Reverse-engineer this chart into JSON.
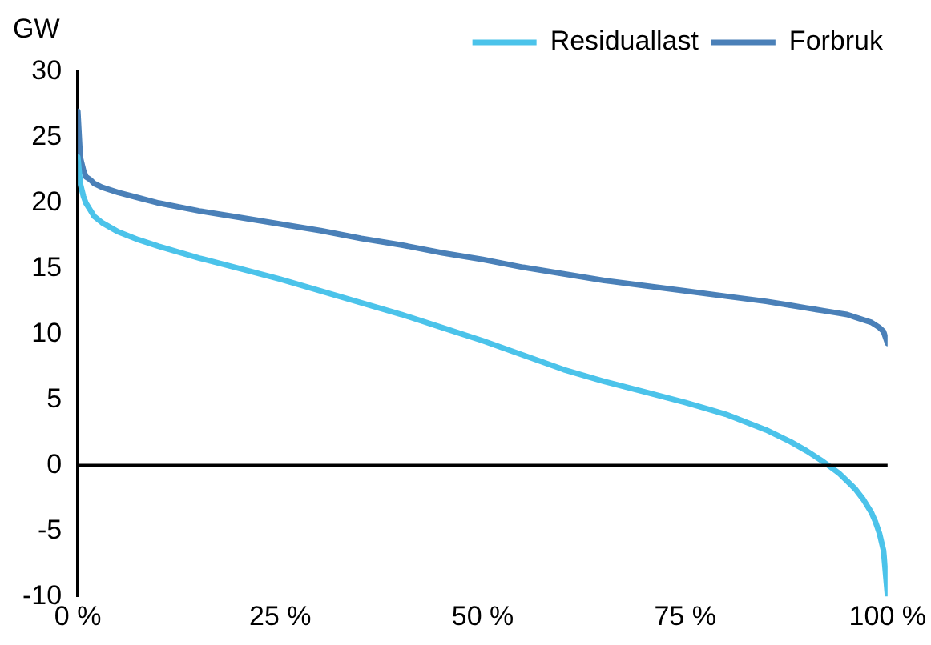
{
  "chart_data": {
    "type": "line",
    "ylabel": "GW",
    "x": [
      0,
      0.3,
      0.7,
      1,
      1.5,
      2,
      3,
      5,
      7.5,
      10,
      15,
      20,
      25,
      30,
      35,
      40,
      45,
      50,
      55,
      60,
      65,
      70,
      75,
      80,
      85,
      88,
      90,
      92,
      94,
      95,
      96,
      97,
      98,
      98.5,
      99,
      99.5,
      100
    ],
    "series": [
      {
        "name": "Residuallast",
        "color": "#4bc3ea",
        "values": [
          23.5,
          21.5,
          20.5,
          20,
          19.5,
          19,
          18.5,
          17.8,
          17.2,
          16.7,
          15.8,
          15,
          14.2,
          13.3,
          12.4,
          11.5,
          10.5,
          9.5,
          8.4,
          7.3,
          6.4,
          5.6,
          4.8,
          3.9,
          2.7,
          1.8,
          1.1,
          0.3,
          -0.6,
          -1.2,
          -1.8,
          -2.6,
          -3.6,
          -4.3,
          -5.2,
          -6.5,
          -10
        ]
      },
      {
        "name": "Forbruk",
        "color": "#4a80b8",
        "values": [
          27,
          23.5,
          22.5,
          22,
          21.8,
          21.5,
          21.2,
          20.8,
          20.4,
          20,
          19.4,
          18.9,
          18.4,
          17.9,
          17.3,
          16.8,
          16.2,
          15.7,
          15.1,
          14.6,
          14.1,
          13.7,
          13.3,
          12.9,
          12.5,
          12.2,
          12,
          11.8,
          11.6,
          11.5,
          11.3,
          11.1,
          10.9,
          10.7,
          10.5,
          10.2,
          9.3
        ]
      }
    ],
    "xlim": [
      0,
      100
    ],
    "xticks": [
      {
        "value": 0,
        "label": "0 %"
      },
      {
        "value": 25,
        "label": "25 %"
      },
      {
        "value": 50,
        "label": "50 %"
      },
      {
        "value": 75,
        "label": "75 %"
      },
      {
        "value": 100,
        "label": "100 %"
      }
    ],
    "ylim": [
      -10,
      30
    ],
    "yticks": [
      -10,
      -5,
      0,
      5,
      10,
      15,
      20,
      25,
      30
    ],
    "ref_lines": [
      {
        "axis": "y",
        "value": 0,
        "color": "#000000"
      }
    ],
    "grid": false,
    "legend": "top right",
    "marker": "none",
    "line_style": "solid"
  }
}
